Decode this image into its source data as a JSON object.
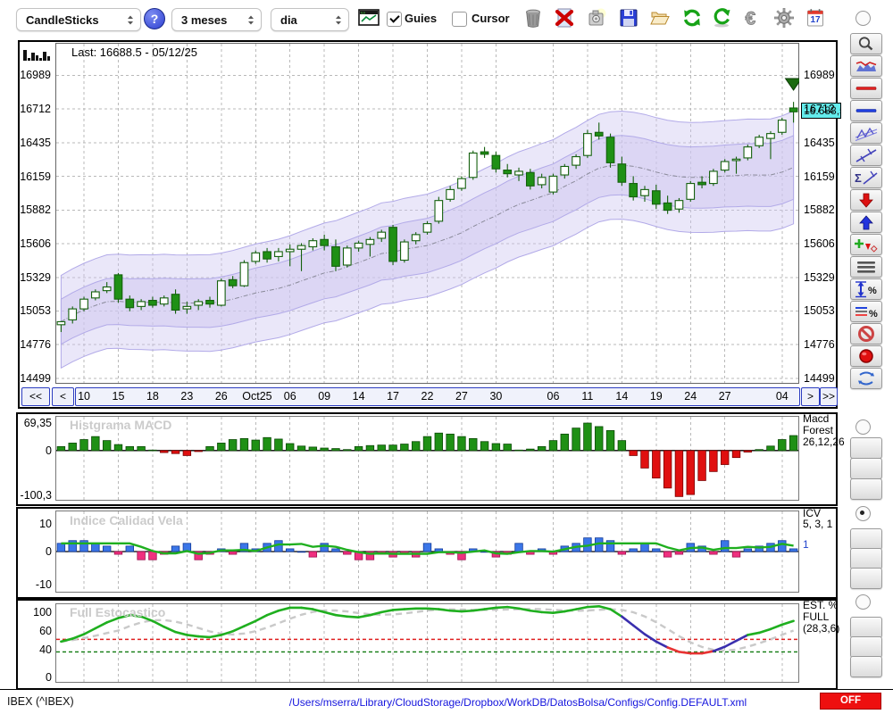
{
  "toolbar": {
    "chart_type": "CandleSticks",
    "help": "?",
    "period": "3 meses",
    "interval": "dia",
    "guies_label": "Guies",
    "guies_checked": true,
    "cursor_label": "Cursor",
    "cursor_checked": false,
    "calendar_day": "17",
    "actions": [
      "trash",
      "delete",
      "snapshot",
      "save",
      "open-folder",
      "refresh",
      "reload",
      "euro",
      "settings-gear"
    ]
  },
  "main_chart": {
    "last_label": "Last: 16688.5 - 05/12/25",
    "current_price": "16.688,5",
    "y_ticks": [
      16989,
      16712,
      16435,
      16159,
      15882,
      15606,
      15329,
      15053,
      14776,
      14499
    ],
    "x_ticks": [
      {
        "i": 2,
        "label": "10"
      },
      {
        "i": 5,
        "label": "15"
      },
      {
        "i": 8,
        "label": "18"
      },
      {
        "i": 11,
        "label": "23"
      },
      {
        "i": 14,
        "label": "26"
      },
      {
        "i": 17,
        "label": "Oct25"
      },
      {
        "i": 20,
        "label": "06"
      },
      {
        "i": 23,
        "label": "09"
      },
      {
        "i": 26,
        "label": "14"
      },
      {
        "i": 29,
        "label": "17"
      },
      {
        "i": 32,
        "label": "22"
      },
      {
        "i": 35,
        "label": "27"
      },
      {
        "i": 38,
        "label": "30"
      },
      {
        "i": 43,
        "label": "06"
      },
      {
        "i": 46,
        "label": "11"
      },
      {
        "i": 49,
        "label": "14"
      },
      {
        "i": 52,
        "label": "19"
      },
      {
        "i": 55,
        "label": "24"
      },
      {
        "i": 58,
        "label": "27"
      },
      {
        "i": 63,
        "label": "04"
      }
    ],
    "nav": {
      "far_prev": "<<",
      "prev": "<",
      "next": ">",
      "far_next": ">>"
    },
    "chart_data": {
      "type": "candlestick",
      "description": "IBEX daily candles with double Bollinger-style band",
      "candles": [
        [
          14940,
          14970,
          14880,
          14965
        ],
        [
          14980,
          15090,
          14950,
          15070
        ],
        [
          15070,
          15170,
          15050,
          15150
        ],
        [
          15160,
          15230,
          15140,
          15210
        ],
        [
          15220,
          15290,
          15200,
          15250
        ],
        [
          15350,
          15365,
          15120,
          15150
        ],
        [
          15150,
          15180,
          15050,
          15080
        ],
        [
          15090,
          15150,
          15060,
          15130
        ],
        [
          15140,
          15170,
          15080,
          15100
        ],
        [
          15110,
          15180,
          15090,
          15160
        ],
        [
          15190,
          15230,
          15030,
          15060
        ],
        [
          15070,
          15130,
          15030,
          15090
        ],
        [
          15100,
          15150,
          15060,
          15130
        ],
        [
          15140,
          15170,
          15080,
          15110
        ],
        [
          15100,
          15320,
          15090,
          15300
        ],
        [
          15310,
          15340,
          15240,
          15260
        ],
        [
          15260,
          15470,
          15250,
          15450
        ],
        [
          15460,
          15550,
          15440,
          15530
        ],
        [
          15540,
          15570,
          15450,
          15480
        ],
        [
          15500,
          15570,
          15460,
          15540
        ],
        [
          15540,
          15600,
          15420,
          15560
        ],
        [
          15560,
          15610,
          15380,
          15590
        ],
        [
          15580,
          15650,
          15550,
          15630
        ],
        [
          15640,
          15680,
          15550,
          15590
        ],
        [
          15580,
          15640,
          15380,
          15420
        ],
        [
          15430,
          15590,
          15410,
          15570
        ],
        [
          15570,
          15630,
          15540,
          15610
        ],
        [
          15600,
          15660,
          15500,
          15640
        ],
        [
          15650,
          15720,
          15620,
          15700
        ],
        [
          15740,
          15760,
          15430,
          15460
        ],
        [
          15470,
          15640,
          15450,
          15620
        ],
        [
          15630,
          15700,
          15600,
          15680
        ],
        [
          15700,
          15790,
          15680,
          15770
        ],
        [
          15790,
          15990,
          15770,
          15960
        ],
        [
          15970,
          16080,
          15950,
          16050
        ],
        [
          16060,
          16160,
          16040,
          16140
        ],
        [
          16150,
          16370,
          16130,
          16350
        ],
        [
          16360,
          16400,
          16310,
          16340
        ],
        [
          16330,
          16360,
          16190,
          16220
        ],
        [
          16210,
          16260,
          16150,
          16180
        ],
        [
          16170,
          16230,
          16120,
          16200
        ],
        [
          16190,
          16220,
          16050,
          16080
        ],
        [
          16090,
          16180,
          16060,
          16150
        ],
        [
          16030,
          16180,
          16010,
          16160
        ],
        [
          16170,
          16260,
          16140,
          16240
        ],
        [
          16250,
          16340,
          16220,
          16320
        ],
        [
          16330,
          16540,
          16310,
          16510
        ],
        [
          16520,
          16600,
          16460,
          16490
        ],
        [
          16480,
          16510,
          16230,
          16270
        ],
        [
          16260,
          16320,
          16080,
          16110
        ],
        [
          16100,
          16160,
          15960,
          15990
        ],
        [
          16000,
          16080,
          15950,
          16050
        ],
        [
          16040,
          16090,
          15890,
          15930
        ],
        [
          15940,
          16000,
          15850,
          15880
        ],
        [
          15890,
          15980,
          15860,
          15960
        ],
        [
          15970,
          16120,
          15950,
          16100
        ],
        [
          16110,
          16160,
          16060,
          16090
        ],
        [
          16100,
          16220,
          16080,
          16200
        ],
        [
          16210,
          16300,
          16190,
          16280
        ],
        [
          16290,
          16320,
          16180,
          16300
        ],
        [
          16310,
          16420,
          16290,
          16400
        ],
        [
          16410,
          16500,
          16390,
          16480
        ],
        [
          16470,
          16530,
          16300,
          16510
        ],
        [
          16520,
          16640,
          16500,
          16620
        ],
        [
          16720,
          16770,
          16600,
          16688.5
        ]
      ]
    }
  },
  "macd_panel": {
    "watermark": "Histgrama MACD",
    "y_top_label": "69,35",
    "y_zero_label": "0",
    "y_bottom_label": "-100,3",
    "y_max": 69.35,
    "y_min": -100.3,
    "right_label_lines": [
      "Macd",
      "Forest",
      "26,12,26"
    ],
    "chart_data": {
      "type": "bar",
      "values": [
        8,
        15,
        22,
        28,
        20,
        12,
        8,
        8,
        1,
        -4,
        -6,
        -10,
        -2,
        8,
        15,
        22,
        24,
        21,
        26,
        23,
        14,
        9,
        7,
        5,
        4,
        2,
        8,
        10,
        11,
        11,
        13,
        18,
        28,
        35,
        33,
        28,
        24,
        18,
        14,
        13,
        1,
        3,
        8,
        20,
        33,
        45,
        55,
        48,
        40,
        20,
        -10,
        -35,
        -55,
        -75,
        -92,
        -88,
        -60,
        -42,
        -28,
        -14,
        -3,
        2,
        9,
        22,
        30
      ]
    }
  },
  "icv_panel": {
    "watermark": "Indice Calidad Vela",
    "y_labels": [
      "10",
      "0",
      "-10"
    ],
    "right_label_lines": [
      "ICV",
      "5, 3, 1"
    ],
    "right_value": "1",
    "chart_data": {
      "type": "bar+line",
      "bars": [
        3,
        4,
        4,
        3,
        2,
        -1,
        2,
        -3,
        -3,
        -1,
        2,
        3,
        -3,
        -1,
        1,
        -1,
        3,
        1,
        3,
        4,
        1,
        0,
        -2,
        3,
        1,
        -1,
        -3,
        -3,
        -1,
        -2,
        -1,
        -2,
        3,
        1,
        -1,
        -3,
        1,
        0,
        -2,
        -1,
        3,
        -1,
        1,
        -1,
        2,
        3,
        5,
        5,
        4,
        -1,
        1,
        3,
        1,
        -2,
        -1,
        3,
        2,
        -1,
        4,
        -2,
        1,
        2,
        3,
        4,
        1
      ]
    }
  },
  "stoch_panel": {
    "watermark": "Full Estocastico",
    "y_labels": [
      "100",
      "60",
      "40",
      "0"
    ],
    "right_label_lines": [
      "EST. %",
      "FULL",
      "(28,3,6)"
    ],
    "chart_data": {
      "type": "line",
      "upper_threshold": 55,
      "lower_threshold": 38,
      "k": [
        52,
        56,
        62,
        70,
        78,
        84,
        88,
        86,
        80,
        72,
        65,
        61,
        59,
        58,
        61,
        66,
        73,
        80,
        88,
        94,
        98,
        98,
        96,
        92,
        88,
        86,
        85,
        88,
        92,
        95,
        96,
        97,
        97,
        96,
        94,
        93,
        94,
        96,
        98,
        99,
        97,
        94,
        92,
        91,
        93,
        96,
        99,
        100,
        96,
        86,
        74,
        62,
        52,
        44,
        38,
        36,
        36,
        39,
        45,
        53,
        61,
        64,
        69,
        75,
        80
      ]
    }
  },
  "status_bar": {
    "symbol": "IBEX (^IBEX)",
    "config_path": "/Users/mserra/Library/CloudStorage/Dropbox/WorkDB/DatosBolsa/Configs/Config.DEFAULT.xml",
    "off_label": "OFF"
  },
  "sidebar": {
    "top_tools": [
      "zoom",
      "price-panel",
      "red-hline",
      "blue-hline",
      "zigzag-channel",
      "trendline",
      "sigma-trend",
      "arrow-down-red",
      "arrow-up-blue",
      "add-marker",
      "lines3",
      "vrange-percent",
      "lines-percent",
      "forbid",
      "record",
      "sync"
    ],
    "panel_groups": [
      {
        "radio_checked": false,
        "tools": [
          "updown-arrows",
          "percent-lines",
          "curves"
        ]
      },
      {
        "radio_checked": true,
        "tools": [
          "updown-arrows",
          "percent-lines",
          "curves"
        ]
      },
      {
        "radio_checked": false,
        "tools": [
          "updown-arrows",
          "percent-lines",
          "curves"
        ]
      }
    ]
  },
  "colors": {
    "candle_green": "#1f9015",
    "candle_border": "#14600d",
    "macd_red": "#e01010",
    "icv_blue": "#3b76e8",
    "icv_pink": "#f0307f",
    "band": "#cdc5f0",
    "line_green": "#1faf1f",
    "stoch_purple": "#3a2fae",
    "stoch_red": "#e83333",
    "price_bg": "#63eded",
    "off_red": "#ee0f0f",
    "path_blue": "#1515dd"
  }
}
